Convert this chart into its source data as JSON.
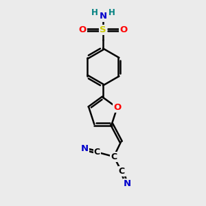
{
  "background_color": "#ebebeb",
  "atom_colors": {
    "C": "#000000",
    "N": "#0000cc",
    "O": "#ff0000",
    "S": "#cccc00",
    "H": "#008080"
  },
  "figsize": [
    3.0,
    3.0
  ],
  "dpi": 100
}
